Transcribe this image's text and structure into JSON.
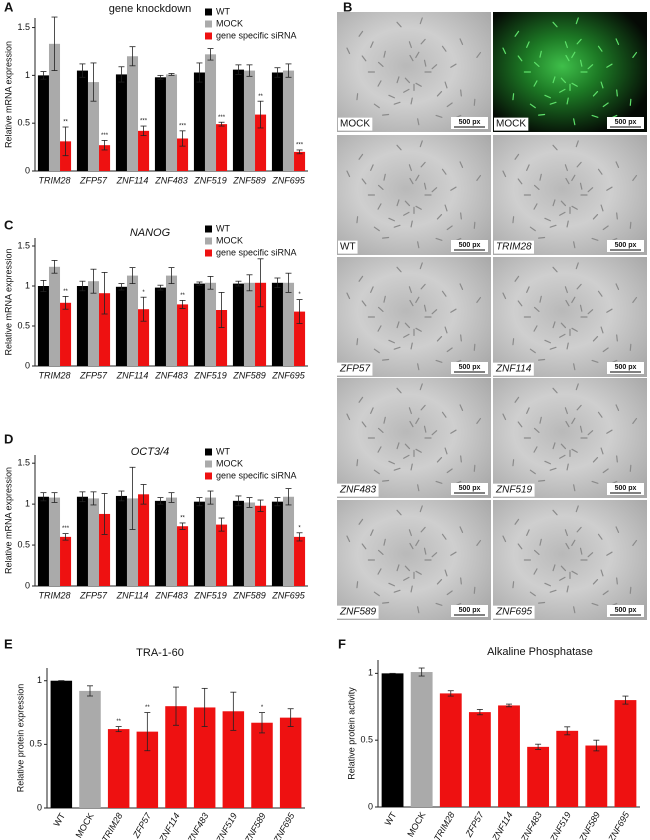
{
  "chart_data": [
    {
      "type": "bar",
      "panel": "A",
      "title": "gene knockdown",
      "y_label": "Relative mRNA expression",
      "categories": [
        "TRIM28",
        "ZFP57",
        "ZNF114",
        "ZNF483",
        "ZNF519",
        "ZNF589",
        "ZNF695"
      ],
      "series": [
        {
          "name": "WT",
          "color": "#000000",
          "values": [
            1.0,
            1.05,
            1.01,
            0.98,
            1.03,
            1.06,
            1.03
          ],
          "errors": [
            0.04,
            0.07,
            0.08,
            0.02,
            0.1,
            0.05,
            0.05
          ]
        },
        {
          "name": "MOCK",
          "color": "#aaaaaa",
          "values": [
            1.33,
            0.93,
            1.2,
            1.01,
            1.22,
            1.05,
            1.05
          ],
          "errors": [
            0.28,
            0.2,
            0.1,
            0.01,
            0.06,
            0.06,
            0.07
          ]
        },
        {
          "name": "gene specific siRNA",
          "color": "#ee1111",
          "values": [
            0.31,
            0.27,
            0.42,
            0.34,
            0.49,
            0.59,
            0.2
          ],
          "errors": [
            0.15,
            0.05,
            0.05,
            0.08,
            0.02,
            0.14,
            0.02
          ],
          "significance": [
            "**",
            "***",
            "***",
            "***",
            "***",
            "**",
            "***"
          ]
        }
      ],
      "ylim": [
        0,
        1.6
      ],
      "yticks": [
        0,
        0.5,
        1,
        1.5
      ],
      "grid": false,
      "legend": "top-right"
    },
    {
      "type": "bar",
      "panel": "C",
      "title": "NANOG",
      "y_label": "Relative mRNA expression",
      "categories": [
        "TRIM28",
        "ZFP57",
        "ZNF114",
        "ZNF483",
        "ZNF519",
        "ZNF589",
        "ZNF695"
      ],
      "series": [
        {
          "name": "WT",
          "color": "#000000",
          "values": [
            1.0,
            1.0,
            0.99,
            0.98,
            1.03,
            1.03,
            1.04
          ],
          "errors": [
            0.07,
            0.06,
            0.04,
            0.03,
            0.02,
            0.03,
            0.06
          ]
        },
        {
          "name": "MOCK",
          "color": "#aaaaaa",
          "values": [
            1.24,
            1.06,
            1.13,
            1.13,
            1.04,
            1.04,
            1.04
          ],
          "errors": [
            0.08,
            0.15,
            0.1,
            0.1,
            0.08,
            0.1,
            0.12
          ]
        },
        {
          "name": "gene specific siRNA",
          "color": "#ee1111",
          "values": [
            0.79,
            0.91,
            0.71,
            0.77,
            0.7,
            1.04,
            0.68
          ],
          "errors": [
            0.08,
            0.26,
            0.15,
            0.05,
            0.22,
            0.3,
            0.15
          ],
          "significance": [
            "**",
            null,
            "*",
            "**",
            null,
            null,
            "*"
          ]
        }
      ],
      "ylim": [
        0,
        1.6
      ],
      "yticks": [
        0,
        0.5,
        1,
        1.5
      ],
      "grid": false,
      "legend": "top-right"
    },
    {
      "type": "bar",
      "panel": "D",
      "title": "OCT3/4",
      "y_label": "Relative mRNA expression",
      "categories": [
        "TRIM28",
        "ZFP57",
        "ZNF114",
        "ZNF483",
        "ZNF519",
        "ZNF589",
        "ZNF695"
      ],
      "series": [
        {
          "name": "WT",
          "color": "#000000",
          "values": [
            1.09,
            1.09,
            1.1,
            1.04,
            1.03,
            1.04,
            1.03
          ],
          "errors": [
            0.05,
            0.06,
            0.06,
            0.04,
            0.05,
            0.06,
            0.05
          ]
        },
        {
          "name": "MOCK",
          "color": "#aaaaaa",
          "values": [
            1.08,
            1.07,
            1.07,
            1.08,
            1.08,
            1.02,
            1.09
          ],
          "errors": [
            0.06,
            0.08,
            0.38,
            0.06,
            0.08,
            0.06,
            0.1
          ]
        },
        {
          "name": "gene specific siRNA",
          "color": "#ee1111",
          "values": [
            0.6,
            0.88,
            1.12,
            0.73,
            0.75,
            0.98,
            0.6
          ],
          "errors": [
            0.04,
            0.25,
            0.12,
            0.04,
            0.08,
            0.07,
            0.05
          ],
          "significance": [
            "***",
            null,
            null,
            "**",
            null,
            null,
            "*"
          ]
        }
      ],
      "ylim": [
        0,
        1.6
      ],
      "yticks": [
        0,
        0.5,
        1,
        1.5
      ],
      "grid": false,
      "legend": "top-right"
    },
    {
      "type": "bar",
      "panel": "E",
      "title": "TRA-1-60",
      "y_label": "Relative protein expression",
      "categories": [
        "WT",
        "MOCK",
        "TRIM28",
        "ZFP57",
        "ZNF114",
        "ZNF483",
        "ZNF519",
        "ZNF589",
        "ZNF695"
      ],
      "values": [
        1.0,
        0.92,
        0.62,
        0.6,
        0.8,
        0.79,
        0.76,
        0.67,
        0.71
      ],
      "errors": [
        0,
        0.04,
        0.02,
        0.15,
        0.15,
        0.15,
        0.15,
        0.08,
        0.07
      ],
      "significance": [
        null,
        null,
        "**",
        "**",
        null,
        null,
        null,
        "*",
        null
      ],
      "colors": [
        "#000000",
        "#aaaaaa",
        "#ee1111",
        "#ee1111",
        "#ee1111",
        "#ee1111",
        "#ee1111",
        "#ee1111",
        "#ee1111"
      ],
      "ylim": [
        0,
        1.1
      ],
      "yticks": [
        0,
        0.5,
        1
      ],
      "grid": false
    },
    {
      "type": "bar",
      "panel": "F",
      "title": "Alkaline Phosphatase",
      "y_label": "Relative protein activity",
      "categories": [
        "WT",
        "MOCK",
        "TRIM28",
        "ZFP57",
        "ZNF114",
        "ZNF483",
        "ZNF519",
        "ZNF589",
        "ZNF695"
      ],
      "values": [
        1.0,
        1.01,
        0.85,
        0.71,
        0.76,
        0.45,
        0.57,
        0.46,
        0.8
      ],
      "errors": [
        0,
        0.03,
        0.02,
        0.02,
        0.01,
        0.02,
        0.03,
        0.04,
        0.03
      ],
      "colors": [
        "#000000",
        "#aaaaaa",
        "#ee1111",
        "#ee1111",
        "#ee1111",
        "#ee1111",
        "#ee1111",
        "#ee1111",
        "#ee1111"
      ],
      "ylim": [
        0,
        1.1
      ],
      "yticks": [
        0,
        0.5,
        1
      ],
      "grid": false
    }
  ],
  "panel_b": {
    "label": "B",
    "tiles": [
      {
        "label": "MOCK",
        "scale": "500 px"
      },
      {
        "label": "MOCK",
        "scale": "500 px",
        "fluorescent": true
      },
      {
        "label": "WT",
        "scale": "500 px"
      },
      {
        "label": "TRIM28",
        "scale": "500 px"
      },
      {
        "label": "ZFP57",
        "scale": "500 px"
      },
      {
        "label": "ZNF114",
        "scale": "500 px"
      },
      {
        "label": "ZNF483",
        "scale": "500 px"
      },
      {
        "label": "ZNF519",
        "scale": "500 px"
      },
      {
        "label": "ZNF589",
        "scale": "500 px"
      },
      {
        "label": "ZNF695",
        "scale": "500 px"
      }
    ]
  }
}
